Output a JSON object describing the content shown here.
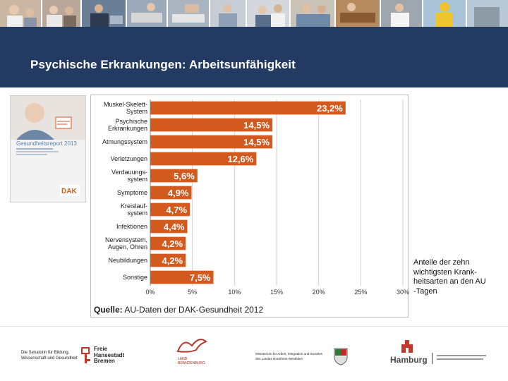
{
  "slide": {
    "title": "Psychische Erkrankungen: Arbeitsunfähigkeit",
    "note": "Anteile der zehn\nwichtigsten Krank-\nheitsarten an den AU\n-Tagen",
    "source_label": "Quelle:",
    "source_text": " AU-Daten der DAK-Gesundheit 2012"
  },
  "cover": {
    "title": "Gesundheitsreport 2013",
    "brand": "DAK"
  },
  "logos": {
    "bremen_ministry": "Die Senatorin für Bildung,\nWissenschaft und Gesundheit",
    "bremen_name": "Freie\nHansestadt\nBremen",
    "brandenburg": "LAND\nBRANDENBURG",
    "nrw_ministry": "Ministerium für Arbeit, Integration und Soziales\ndes Landes Nordrhein-Westfalen",
    "hamburg": "Hamburg"
  },
  "colors": {
    "bar": "#d35a1e",
    "header": "#233a63",
    "grid": "#cfcfcf"
  },
  "chart_data": {
    "type": "bar",
    "orientation": "horizontal",
    "title": "",
    "xlabel": "",
    "ylabel": "",
    "xlim": [
      0,
      30
    ],
    "xticks": [
      0,
      5,
      10,
      15,
      20,
      25,
      30
    ],
    "tick_labels": [
      "0%",
      "5%",
      "10%",
      "15%",
      "20%",
      "25%",
      "30%"
    ],
    "grid": true,
    "categories": [
      "Muskel-Skelett-System",
      "Psychische Erkrankungen",
      "Atmungssystem",
      "Verletzungen",
      "Verdauungs-system",
      "Symptome",
      "Kreislauf-system",
      "Infektionen",
      "Nervensystem, Augen, Ohren",
      "Neubildungen",
      "Sonstige"
    ],
    "category_lines": [
      [
        "Muskel-Skelett-",
        "System"
      ],
      [
        "Psychische",
        "Erkrankungen"
      ],
      [
        "Atmungssystem"
      ],
      [
        "Verletzungen"
      ],
      [
        "Verdauungs-",
        "system"
      ],
      [
        "Symptome"
      ],
      [
        "Kreislauf-",
        "system"
      ],
      [
        "Infektionen"
      ],
      [
        "Nervensystem,",
        "Augen, Ohren"
      ],
      [
        "Neubildungen"
      ],
      [
        "Sonstige"
      ]
    ],
    "values": [
      23.2,
      14.5,
      14.5,
      12.6,
      5.6,
      4.9,
      4.7,
      4.4,
      4.2,
      4.2,
      7.5
    ],
    "data_labels": [
      "23,2%",
      "14,5%",
      "14,5%",
      "12,6%",
      "5,6%",
      "4,9%",
      "4,7%",
      "4,4%",
      "4,2%",
      "4,2%",
      "7,5%"
    ]
  }
}
